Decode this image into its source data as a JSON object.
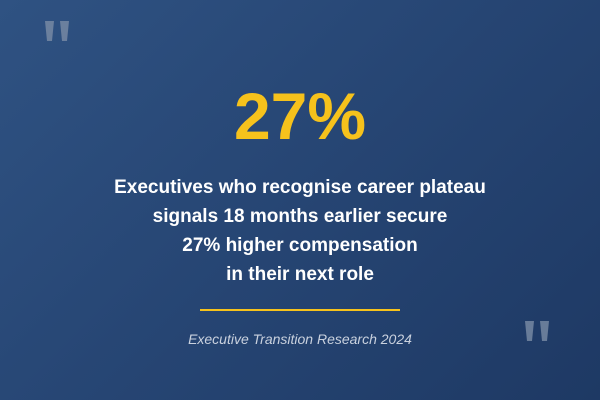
{
  "stat": "27%",
  "body_lines": [
    "Executives who recognise career plateau",
    "signals 18 months earlier secure",
    "27% higher compensation",
    "in their next role"
  ],
  "source": "Executive Transition Research 2024"
}
